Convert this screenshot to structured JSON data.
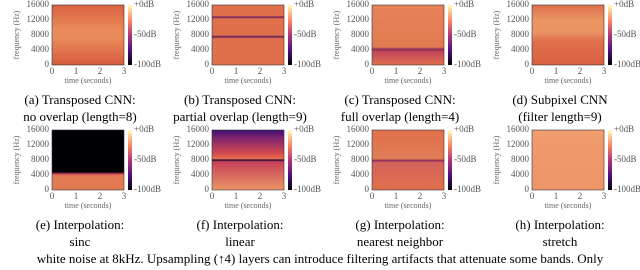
{
  "axes": {
    "y_label": "frequency (Hz)",
    "x_label": "time (seconds)",
    "y_ticks": [
      "0",
      "4000",
      "8000",
      "12000",
      "16000"
    ],
    "x_ticks": [
      "0",
      "1",
      "2",
      "3"
    ],
    "colorbar_ticks": [
      "+0dB",
      "-50dB",
      "-100dB"
    ]
  },
  "panels": [
    {
      "caption": [
        "(a) Transposed CNN:",
        "no overlap (length=8)"
      ]
    },
    {
      "caption": [
        "(b) Transposed CNN:",
        "partial overlap (length=9)"
      ]
    },
    {
      "caption": [
        "(c) Transposed CNN:",
        "full overlap (length=4)"
      ]
    },
    {
      "caption": [
        "(d) Subpixel CNN",
        "(filter length=9)"
      ]
    },
    {
      "caption": [
        "(e) Interpolation:",
        "sinc"
      ]
    },
    {
      "caption": [
        "(f) Interpolation:",
        "linear"
      ]
    },
    {
      "caption": [
        "(g) Interpolation:",
        "nearest neighbor"
      ]
    },
    {
      "caption": [
        "(h) Interpolation:",
        "stretch"
      ]
    }
  ],
  "footer": "white noise at 8kHz. Upsampling (↑4) layers can introduce filtering artifacts that attenuate some bands. Only"
}
